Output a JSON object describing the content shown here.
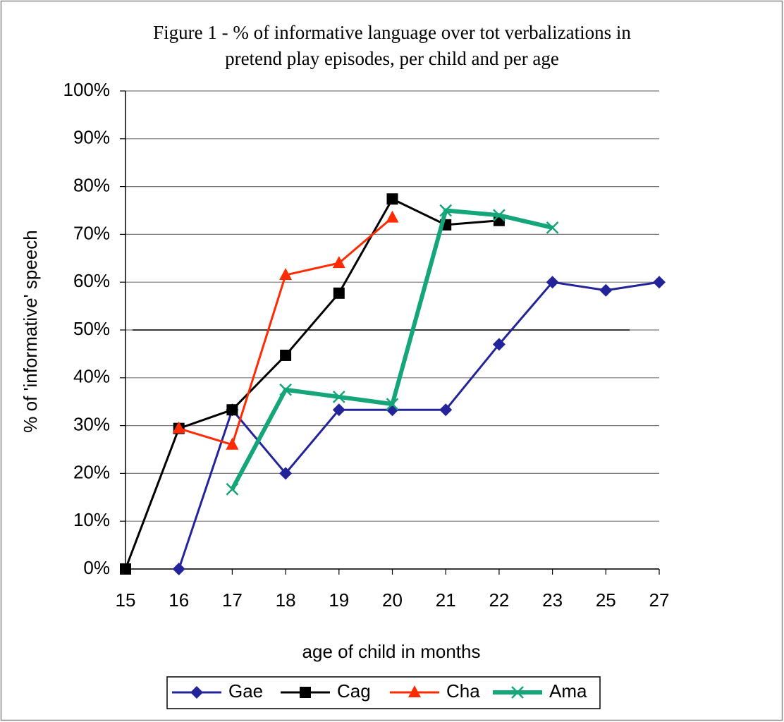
{
  "chart_data": {
    "type": "line",
    "title": [
      "Figure 1 -  % of informative language over tot verbalizations in",
      "pretend play episodes, per child and per age"
    ],
    "x_label": "age of child in months",
    "y_label": "% of 'informative' speech",
    "categories": [
      "15",
      "16",
      "17",
      "18",
      "19",
      "20",
      "21",
      "22",
      "23",
      "25",
      "27"
    ],
    "ylim": [
      0,
      100
    ],
    "yticks": [
      {
        "value": 0,
        "label": "0%"
      },
      {
        "value": 10,
        "label": "10%"
      },
      {
        "value": 20,
        "label": "20%"
      },
      {
        "value": 30,
        "label": "30%"
      },
      {
        "value": 40,
        "label": "40%"
      },
      {
        "value": 50,
        "label": "50%"
      },
      {
        "value": 60,
        "label": "60%"
      },
      {
        "value": 70,
        "label": "70%"
      },
      {
        "value": 80,
        "label": "80%"
      },
      {
        "value": 90,
        "label": "90%"
      },
      {
        "value": 100,
        "label": "100%"
      }
    ],
    "grid": true,
    "reference_line": 50,
    "legend": "bottom",
    "series": [
      {
        "name": "Gae",
        "color": "#24249a",
        "marker": "diamond",
        "width": 3,
        "values": [
          null,
          0,
          33.3,
          20,
          33.3,
          33.3,
          33.3,
          47,
          60,
          58.3,
          60
        ]
      },
      {
        "name": "Cag",
        "color": "#000000",
        "marker": "square",
        "width": 3,
        "values": [
          0,
          29.4,
          33.3,
          44.7,
          57.7,
          77.4,
          72,
          72.9,
          null,
          null,
          null
        ]
      },
      {
        "name": "Cha",
        "color": "#ff2a00",
        "marker": "triangle",
        "width": 3,
        "values": [
          null,
          29.4,
          26,
          61.5,
          64,
          73.5,
          null,
          null,
          null,
          null,
          null
        ]
      },
      {
        "name": "Ama",
        "color": "#14a67a",
        "marker": "x",
        "width": 6,
        "values": [
          null,
          null,
          16.7,
          37.5,
          36,
          34.5,
          75,
          74,
          71.4,
          null,
          null
        ]
      }
    ]
  }
}
